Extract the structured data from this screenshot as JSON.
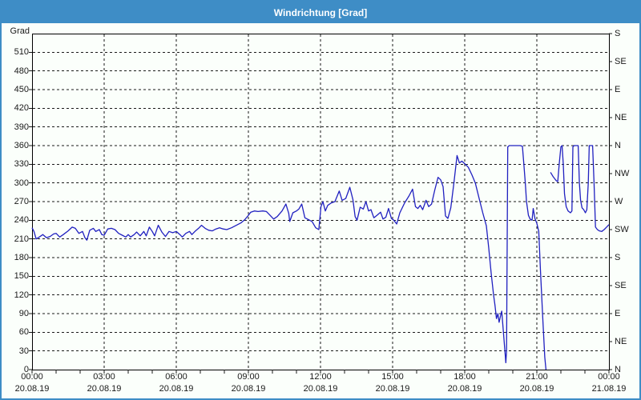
{
  "window": {
    "title": "Windrichtung [Grad]"
  },
  "colors": {
    "titlebar": "#3e8dc6",
    "window_border": "#3e8dc6",
    "background": "#fbfffb",
    "line": "#2020c0",
    "grid": "#1a1a1a",
    "axis": "#000000",
    "text": "#1a1a1a"
  },
  "chart_data": {
    "type": "line",
    "title": "Windrichtung [Grad]",
    "ylabel": "Grad",
    "y_axis": {
      "min": 0,
      "max": 540,
      "tick_step": 30,
      "tick_values": [
        0,
        30,
        60,
        90,
        120,
        150,
        180,
        210,
        240,
        270,
        300,
        330,
        360,
        390,
        420,
        450,
        480,
        510
      ]
    },
    "y2_axis": {
      "description": "compass directions every 45 Grad",
      "ticks": [
        {
          "v": 0,
          "label": "N"
        },
        {
          "v": 45,
          "label": "NE"
        },
        {
          "v": 90,
          "label": "E"
        },
        {
          "v": 135,
          "label": "SE"
        },
        {
          "v": 180,
          "label": "S"
        },
        {
          "v": 225,
          "label": "SW"
        },
        {
          "v": 270,
          "label": "W"
        },
        {
          "v": 315,
          "label": "NW"
        },
        {
          "v": 360,
          "label": "N"
        },
        {
          "v": 405,
          "label": "NE"
        },
        {
          "v": 450,
          "label": "E"
        },
        {
          "v": 495,
          "label": "SE"
        },
        {
          "v": 540,
          "label": "S"
        }
      ]
    },
    "x_axis": {
      "min_hour": 0,
      "max_hour": 24,
      "major_step_hours": 3,
      "minor_step_hours": 1,
      "ticks": [
        {
          "h": 0,
          "time": "00:00",
          "date": "20.08.19"
        },
        {
          "h": 3,
          "time": "03:00",
          "date": "20.08.19"
        },
        {
          "h": 6,
          "time": "06:00",
          "date": "20.08.19"
        },
        {
          "h": 9,
          "time": "09:00",
          "date": "20.08.19"
        },
        {
          "h": 12,
          "time": "12:00",
          "date": "20.08.19"
        },
        {
          "h": 15,
          "time": "15:00",
          "date": "20.08.19"
        },
        {
          "h": 18,
          "time": "18:00",
          "date": "20.08.19"
        },
        {
          "h": 21,
          "time": "21:00",
          "date": "20.08.19"
        },
        {
          "h": 24,
          "time": "00:00",
          "date": "21.08.19"
        }
      ]
    },
    "grid": {
      "horizontal_dashed_every": 30,
      "vertical_dashed_every": 3
    },
    "series": [
      {
        "name": "Windrichtung",
        "unit": "Grad",
        "color": "#2020c0",
        "points": [
          [
            0,
            228
          ],
          [
            0.08,
            222
          ],
          [
            0.17,
            210
          ],
          [
            0.3,
            213
          ],
          [
            0.45,
            217
          ],
          [
            0.6,
            212
          ],
          [
            0.75,
            214
          ],
          [
            0.9,
            218
          ],
          [
            1.0,
            219
          ],
          [
            1.15,
            213
          ],
          [
            1.3,
            217
          ],
          [
            1.5,
            223
          ],
          [
            1.67,
            229
          ],
          [
            1.8,
            227
          ],
          [
            1.95,
            219
          ],
          [
            2.1,
            222
          ],
          [
            2.2,
            212
          ],
          [
            2.28,
            208
          ],
          [
            2.4,
            224
          ],
          [
            2.55,
            227
          ],
          [
            2.65,
            222
          ],
          [
            2.8,
            225
          ],
          [
            2.9,
            217
          ],
          [
            3.0,
            216
          ],
          [
            3.15,
            226
          ],
          [
            3.3,
            227
          ],
          [
            3.45,
            225
          ],
          [
            3.6,
            219
          ],
          [
            3.75,
            216
          ],
          [
            3.9,
            213
          ],
          [
            4.0,
            217
          ],
          [
            4.1,
            213
          ],
          [
            4.25,
            217
          ],
          [
            4.35,
            221
          ],
          [
            4.5,
            215
          ],
          [
            4.65,
            222
          ],
          [
            4.75,
            215
          ],
          [
            4.88,
            229
          ],
          [
            5.0,
            222
          ],
          [
            5.1,
            215
          ],
          [
            5.25,
            232
          ],
          [
            5.4,
            221
          ],
          [
            5.55,
            214
          ],
          [
            5.7,
            222
          ],
          [
            5.85,
            220
          ],
          [
            6.0,
            222
          ],
          [
            6.15,
            217
          ],
          [
            6.25,
            213
          ],
          [
            6.4,
            219
          ],
          [
            6.55,
            222
          ],
          [
            6.65,
            217
          ],
          [
            6.8,
            223
          ],
          [
            6.95,
            228
          ],
          [
            7.05,
            232
          ],
          [
            7.2,
            227
          ],
          [
            7.35,
            224
          ],
          [
            7.5,
            223
          ],
          [
            7.65,
            226
          ],
          [
            7.8,
            228
          ],
          [
            7.95,
            226
          ],
          [
            8.1,
            225
          ],
          [
            8.3,
            228
          ],
          [
            8.5,
            232
          ],
          [
            8.7,
            236
          ],
          [
            8.85,
            241
          ],
          [
            9.0,
            248
          ],
          [
            9.1,
            253
          ],
          [
            9.25,
            255
          ],
          [
            9.4,
            254
          ],
          [
            9.6,
            255
          ],
          [
            9.75,
            254
          ],
          [
            9.9,
            248
          ],
          [
            10.05,
            242
          ],
          [
            10.2,
            246
          ],
          [
            10.4,
            255
          ],
          [
            10.56,
            266
          ],
          [
            10.68,
            251
          ],
          [
            10.72,
            238
          ],
          [
            10.85,
            252
          ],
          [
            11.0,
            255
          ],
          [
            11.1,
            258
          ],
          [
            11.22,
            266
          ],
          [
            11.35,
            244
          ],
          [
            11.5,
            241
          ],
          [
            11.65,
            238
          ],
          [
            11.8,
            228
          ],
          [
            11.93,
            225
          ],
          [
            12.02,
            262
          ],
          [
            12.1,
            270
          ],
          [
            12.2,
            255
          ],
          [
            12.3,
            264
          ],
          [
            12.45,
            268
          ],
          [
            12.6,
            270
          ],
          [
            12.78,
            287
          ],
          [
            12.9,
            272
          ],
          [
            13.05,
            275
          ],
          [
            13.22,
            293
          ],
          [
            13.35,
            273
          ],
          [
            13.44,
            246
          ],
          [
            13.52,
            240
          ],
          [
            13.65,
            261
          ],
          [
            13.78,
            258
          ],
          [
            13.89,
            270
          ],
          [
            14.0,
            255
          ],
          [
            14.1,
            257
          ],
          [
            14.22,
            244
          ],
          [
            14.35,
            248
          ],
          [
            14.5,
            253
          ],
          [
            14.6,
            242
          ],
          [
            14.72,
            245
          ],
          [
            14.83,
            259
          ],
          [
            14.95,
            243
          ],
          [
            15.05,
            240
          ],
          [
            15.17,
            234
          ],
          [
            15.3,
            252
          ],
          [
            15.5,
            268
          ],
          [
            15.68,
            279
          ],
          [
            15.83,
            290
          ],
          [
            15.95,
            262
          ],
          [
            16.05,
            259
          ],
          [
            16.15,
            264
          ],
          [
            16.25,
            257
          ],
          [
            16.39,
            272
          ],
          [
            16.5,
            262
          ],
          [
            16.62,
            266
          ],
          [
            16.75,
            288
          ],
          [
            16.89,
            309
          ],
          [
            17.0,
            305
          ],
          [
            17.1,
            294
          ],
          [
            17.2,
            247
          ],
          [
            17.3,
            243
          ],
          [
            17.42,
            260
          ],
          [
            17.55,
            300
          ],
          [
            17.68,
            344
          ],
          [
            17.78,
            332
          ],
          [
            17.88,
            335
          ],
          [
            18.0,
            331
          ],
          [
            18.15,
            325
          ],
          [
            18.3,
            313
          ],
          [
            18.44,
            300
          ],
          [
            18.6,
            275
          ],
          [
            18.75,
            252
          ],
          [
            18.9,
            231
          ],
          [
            19.0,
            195
          ],
          [
            19.1,
            155
          ],
          [
            19.2,
            120
          ],
          [
            19.26,
            103
          ],
          [
            19.32,
            82
          ],
          [
            19.38,
            90
          ],
          [
            19.43,
            76
          ],
          [
            19.5,
            88
          ],
          [
            19.54,
            94
          ],
          [
            19.62,
            55
          ],
          [
            19.68,
            26
          ],
          [
            19.71,
            11
          ],
          [
            19.74,
            30
          ],
          [
            19.79,
            358
          ],
          [
            19.85,
            360
          ],
          [
            20.0,
            360
          ],
          [
            20.15,
            360
          ],
          [
            20.3,
            360
          ],
          [
            20.4,
            359
          ],
          [
            20.46,
            330
          ],
          [
            20.52,
            300
          ],
          [
            20.57,
            270
          ],
          [
            20.65,
            248
          ],
          [
            20.72,
            242
          ],
          [
            20.8,
            240
          ],
          [
            20.85,
            259
          ],
          [
            20.92,
            243
          ],
          [
            21.0,
            235
          ],
          [
            21.08,
            222
          ],
          [
            21.15,
            160
          ],
          [
            21.25,
            80
          ],
          [
            21.33,
            20
          ],
          [
            21.38,
            0
          ],
          null,
          [
            21.57,
            317
          ],
          [
            21.68,
            310
          ],
          [
            21.8,
            304
          ],
          [
            21.87,
            302
          ],
          [
            21.93,
            330
          ],
          [
            22.0,
            358
          ],
          [
            22.05,
            360
          ],
          [
            22.1,
            330
          ],
          [
            22.15,
            283
          ],
          [
            22.22,
            262
          ],
          [
            22.3,
            255
          ],
          [
            22.4,
            252
          ],
          [
            22.46,
            255
          ],
          [
            22.5,
            358
          ],
          [
            22.55,
            360
          ],
          [
            22.65,
            360
          ],
          [
            22.72,
            360
          ],
          [
            22.77,
            300
          ],
          [
            22.82,
            272
          ],
          [
            22.88,
            260
          ],
          [
            22.95,
            257
          ],
          [
            23.02,
            252
          ],
          [
            23.08,
            257
          ],
          [
            23.14,
            300
          ],
          [
            23.18,
            360
          ],
          [
            23.25,
            360
          ],
          [
            23.32,
            360
          ],
          [
            23.38,
            300
          ],
          [
            23.44,
            229
          ],
          [
            23.52,
            225
          ],
          [
            23.6,
            223
          ],
          [
            23.7,
            222
          ],
          [
            23.8,
            225
          ],
          [
            23.9,
            229
          ],
          [
            24.0,
            233
          ]
        ]
      }
    ]
  }
}
